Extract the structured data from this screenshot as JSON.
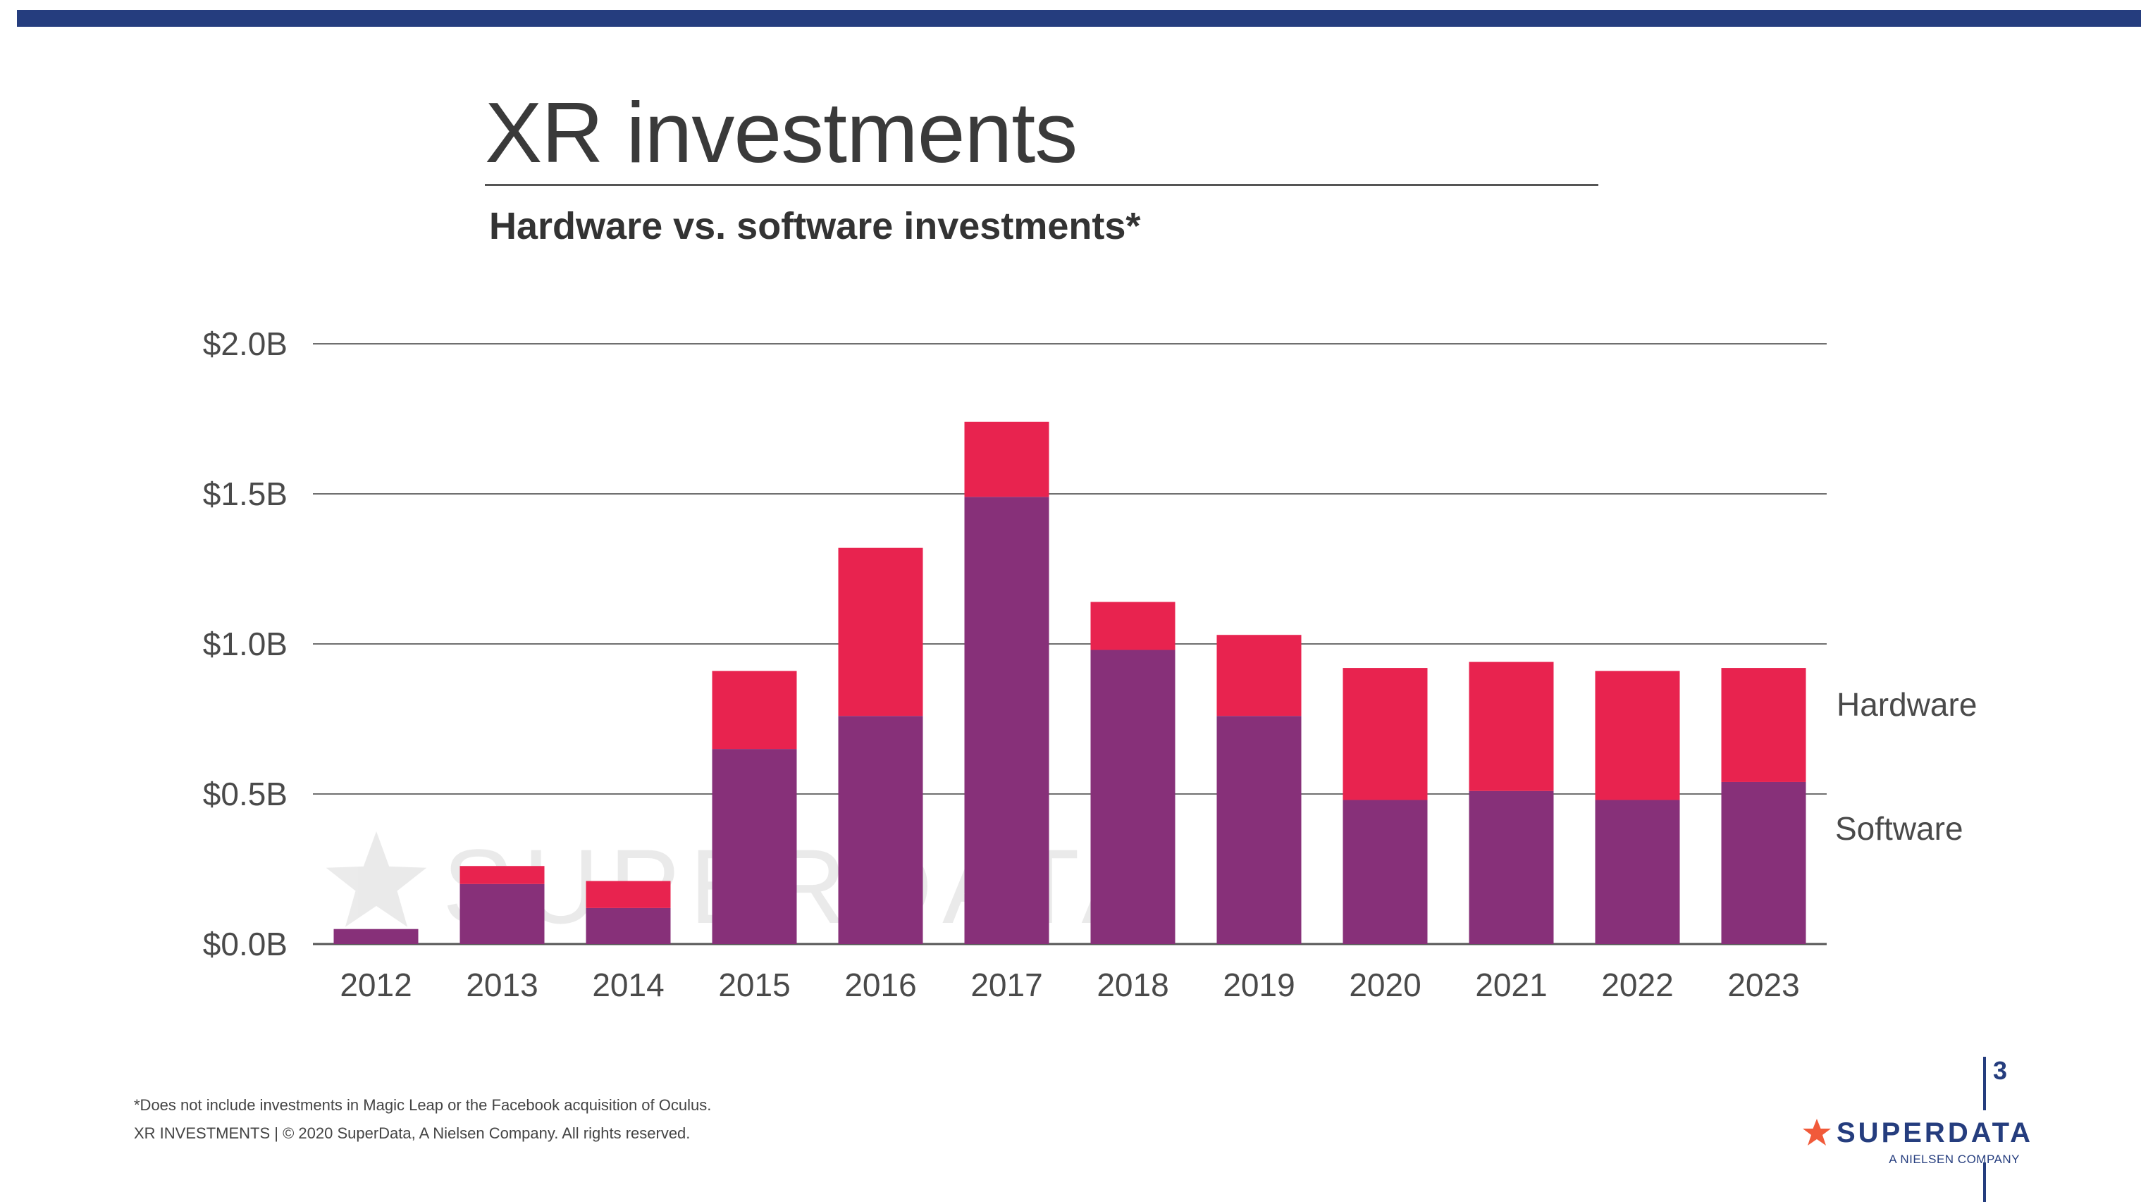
{
  "slide": {
    "title": "XR investments",
    "subtitle": "Hardware vs. software investments*",
    "footnote": "*Does not include investments in Magic Leap or the Facebook acquisition of Oculus.",
    "footer": "XR INVESTMENTS  |  © 2020 SuperData, A Nielsen Company. All rights reserved.",
    "page_number": "3",
    "watermark": "SUPERDATA",
    "logo": {
      "super": "SUPER",
      "data": "DATA",
      "tagline": "A NIELSEN COMPANY"
    }
  },
  "colors": {
    "top_bar": "#253d7e",
    "software": "#873079",
    "hardware": "#e8234f",
    "logo_star": "#f15a3a",
    "logo_text": "#253d7e"
  },
  "chart_data": {
    "type": "bar",
    "stacked": true,
    "title": "",
    "xlabel": "",
    "ylabel": "",
    "categories": [
      "2012",
      "2013",
      "2014",
      "2015",
      "2016",
      "2017",
      "2018",
      "2019",
      "2020",
      "2021",
      "2022",
      "2023"
    ],
    "series": [
      {
        "name": "Software",
        "values": [
          0.05,
          0.2,
          0.12,
          0.65,
          0.76,
          1.49,
          0.98,
          0.76,
          0.48,
          0.51,
          0.48,
          0.54
        ]
      },
      {
        "name": "Hardware",
        "values": [
          0.0,
          0.06,
          0.09,
          0.26,
          0.56,
          0.25,
          0.16,
          0.27,
          0.44,
          0.43,
          0.43,
          0.38
        ]
      }
    ],
    "ylim": [
      0,
      2.0
    ],
    "y_ticks": [
      0,
      0.5,
      1.0,
      1.5,
      2.0
    ],
    "y_tick_labels": [
      "$0.0B",
      "$0.5B",
      "$1.0B",
      "$1.5B",
      "$2.0B"
    ],
    "grid": true,
    "legend": "right, beside bars"
  }
}
